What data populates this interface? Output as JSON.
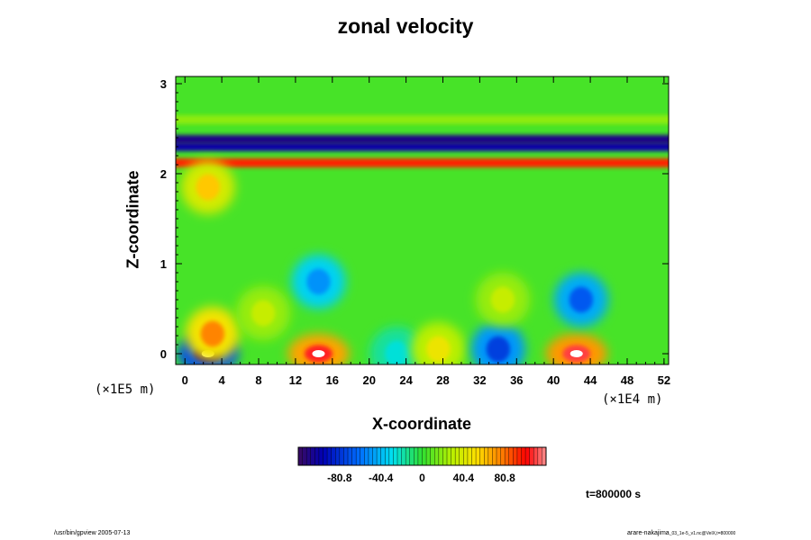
{
  "chart_data": {
    "type": "heatmap",
    "title": "zonal velocity",
    "xlabel": "X-coordinate",
    "ylabel": "Z-coordinate",
    "x_scale_note": "(×1E4 m)",
    "y_scale_note": "(×1E5 m)",
    "xlim": [
      -1,
      52.5
    ],
    "ylim": [
      -0.12,
      3.08
    ],
    "x_ticks": [
      "0",
      "4",
      "8",
      "12",
      "16",
      "20",
      "24",
      "28",
      "32",
      "36",
      "40",
      "44",
      "48",
      "52"
    ],
    "y_ticks": [
      "0",
      "1",
      "2",
      "3"
    ],
    "colorbar": {
      "min": -121.2,
      "max": 121.2,
      "tick_labels": [
        "-80.8",
        "-40.4",
        "0",
        "40.4",
        "80.8"
      ],
      "tick_values": [
        -80.8,
        -40.4,
        0,
        40.4,
        80.8
      ]
    },
    "time_label": "t=800000 s",
    "features": [
      {
        "x": 2.5,
        "z": 0.0,
        "value": -130
      },
      {
        "x": 3.0,
        "z": 0.22,
        "value": 90
      },
      {
        "x": 14.5,
        "z": 0.0,
        "value": 125
      },
      {
        "x": 23.0,
        "z": 0.0,
        "value": -30
      },
      {
        "x": 27.5,
        "z": 0.05,
        "value": 55
      },
      {
        "x": 34.0,
        "z": 0.05,
        "value": -90
      },
      {
        "x": 42.5,
        "z": 0.0,
        "value": 130
      },
      {
        "x": 14.5,
        "z": 0.8,
        "value": -60
      },
      {
        "x": 34.5,
        "z": 0.6,
        "value": 40
      },
      {
        "x": 43.0,
        "z": 0.6,
        "value": -80
      },
      {
        "x": 2.5,
        "z": 1.85,
        "value": 70
      },
      {
        "x": 8.5,
        "z": 0.45,
        "value": 40
      }
    ],
    "bands": [
      {
        "z": 2.12,
        "value": 95
      },
      {
        "z": 2.3,
        "value": -100
      },
      {
        "z": 2.38,
        "value": -110
      },
      {
        "z": 2.6,
        "value": 20
      }
    ]
  },
  "footer": {
    "left": "/usr/bin/gpview 2005-07-13",
    "right_main": "arare-nakajima",
    "right_small": "_03_1e-5_v1.nc@VelX,t=800000"
  },
  "colors": {
    "background": "#ffffff",
    "axis": "#000000"
  }
}
